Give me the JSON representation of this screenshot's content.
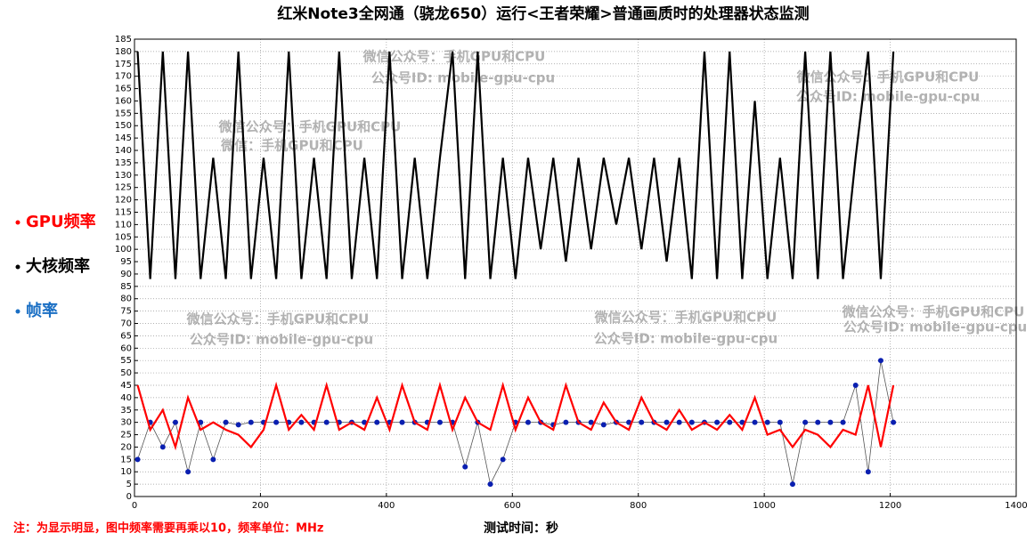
{
  "chart_data": {
    "type": "line",
    "title": "红米Note3全网通（骁龙650）运行<王者荣耀>普通画质时的处理器状态监测",
    "xlabel": "测试时间：秒",
    "footnote": "注：为显示明显，图中频率需要再乘以10，频率单位：MHz",
    "annotations": [
      "微信公众号：手机GPU和CPU",
      "公众号ID: mobile-gpu-cpu",
      "微信公众号：手机GPU和CPU",
      "微信：手机GPU和CPU",
      "微信公众号：手机GPU和CPU",
      "公众号ID: mobile-gpu-cpu",
      "微信公众号：手机GPU和CPU",
      "公众号ID: mobile-gpu-cpu",
      "微信公众号：手机GPU和CPU",
      "公众号ID: mobile-gpu-cpu",
      "微信公众号：手机GPU和CPU",
      "公众号ID: mobile-gpu-cpu"
    ],
    "xlim": [
      0,
      1400
    ],
    "xticks": [
      0,
      200,
      400,
      600,
      800,
      1000,
      1200,
      1400
    ],
    "ylim": [
      0,
      185
    ],
    "yticks": [
      0,
      5,
      10,
      15,
      20,
      25,
      30,
      35,
      40,
      45,
      50,
      55,
      60,
      65,
      70,
      75,
      80,
      85,
      90,
      95,
      100,
      105,
      110,
      115,
      120,
      125,
      130,
      135,
      140,
      145,
      150,
      155,
      160,
      165,
      170,
      175,
      180,
      185
    ],
    "grid": true,
    "x": [
      5,
      25,
      45,
      65,
      85,
      105,
      125,
      145,
      165,
      185,
      205,
      225,
      245,
      265,
      285,
      305,
      325,
      345,
      365,
      385,
      405,
      425,
      445,
      465,
      485,
      505,
      525,
      545,
      565,
      585,
      605,
      625,
      645,
      665,
      685,
      705,
      725,
      745,
      765,
      785,
      805,
      825,
      845,
      865,
      885,
      905,
      925,
      945,
      965,
      985,
      1005,
      1025,
      1045,
      1065,
      1085,
      1105,
      1125,
      1145,
      1165,
      1185,
      1205
    ],
    "series": [
      {
        "name": "GPU频率",
        "color": "#ff0000",
        "values": [
          45,
          27,
          35,
          20,
          40,
          27,
          30,
          27,
          25,
          20,
          27,
          45,
          27,
          33,
          27,
          45,
          27,
          30,
          27,
          40,
          27,
          45,
          30,
          27,
          45,
          27,
          40,
          30,
          27,
          45,
          27,
          40,
          30,
          27,
          45,
          30,
          27,
          38,
          30,
          27,
          40,
          30,
          27,
          35,
          27,
          30,
          27,
          33,
          27,
          40,
          25,
          27,
          20,
          27,
          25,
          20,
          27,
          25,
          45,
          20,
          45
        ]
      },
      {
        "name": "大核频率",
        "color": "#000000",
        "values": [
          180,
          88,
          180,
          88,
          180,
          88,
          137,
          88,
          180,
          88,
          137,
          88,
          180,
          88,
          137,
          88,
          180,
          88,
          137,
          88,
          180,
          88,
          137,
          88,
          137,
          180,
          88,
          180,
          88,
          137,
          88,
          137,
          100,
          137,
          95,
          137,
          100,
          137,
          110,
          137,
          100,
          137,
          95,
          137,
          88,
          180,
          88,
          180,
          88,
          160,
          88,
          137,
          88,
          180,
          88,
          180,
          88,
          137,
          180,
          88,
          180
        ]
      },
      {
        "name": "帧率",
        "color": "#1a6fc4",
        "markers": true,
        "values": [
          15,
          30,
          20,
          30,
          10,
          30,
          15,
          30,
          29,
          30,
          30,
          30,
          30,
          30,
          30,
          30,
          30,
          30,
          30,
          30,
          30,
          30,
          30,
          30,
          30,
          30,
          12,
          30,
          5,
          15,
          30,
          30,
          30,
          29,
          30,
          30,
          30,
          29,
          30,
          30,
          30,
          30,
          30,
          30,
          30,
          30,
          30,
          30,
          30,
          30,
          30,
          30,
          5,
          30,
          30,
          30,
          30,
          45,
          10,
          55,
          30
        ]
      }
    ]
  }
}
